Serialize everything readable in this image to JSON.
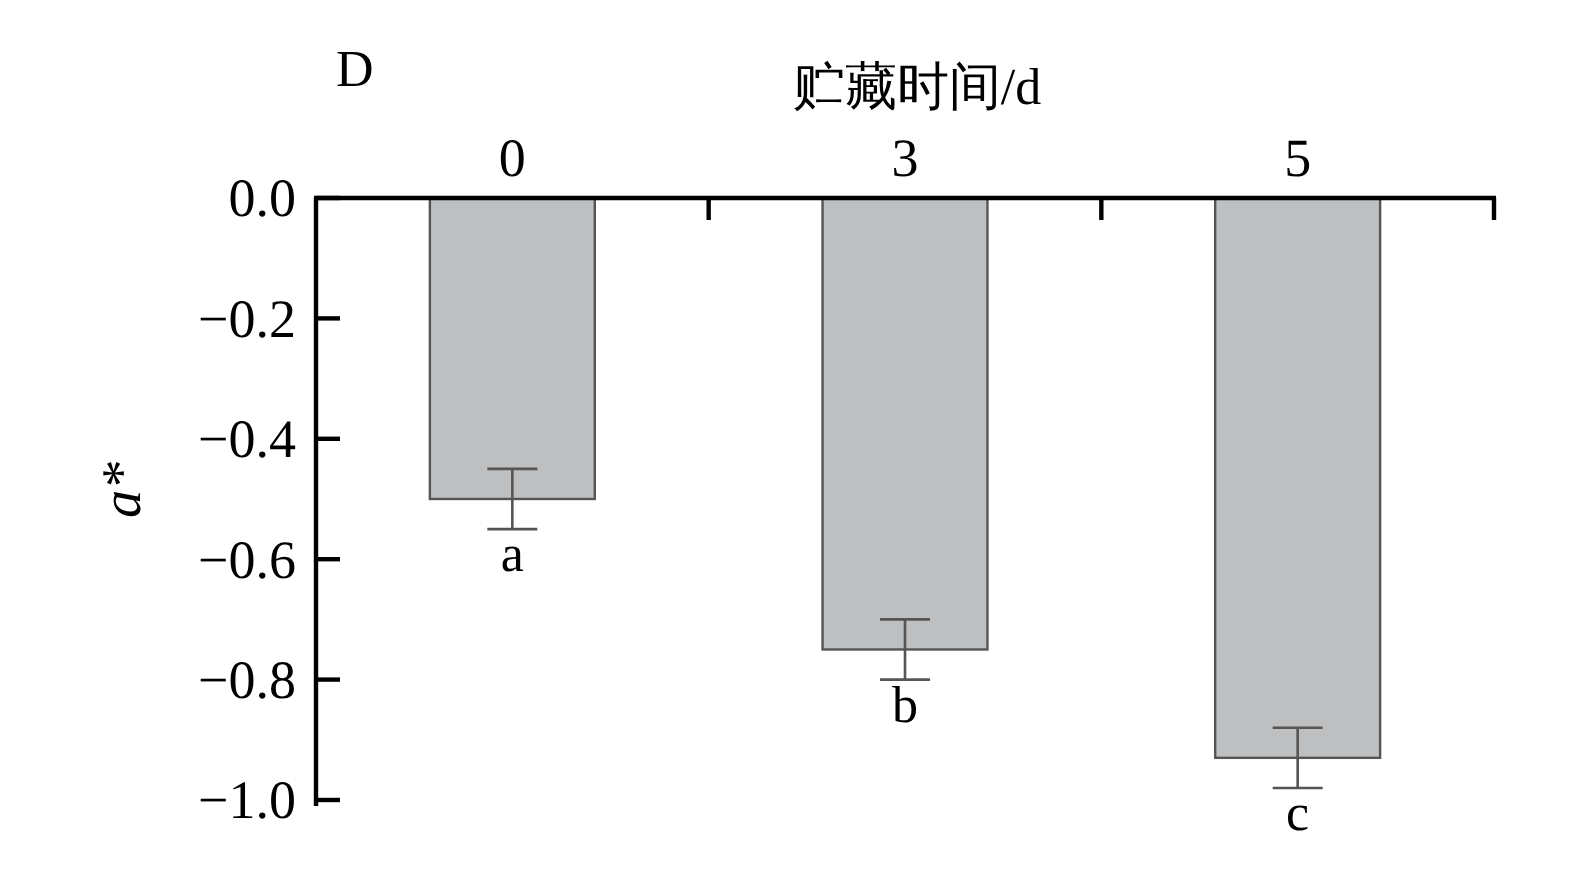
{
  "chart_data": {
    "type": "bar",
    "title": "D",
    "xlabel": "贮藏时间/d",
    "ylabel": "a*",
    "categories": [
      "0",
      "3",
      "5"
    ],
    "values": [
      -0.5,
      -0.75,
      -0.93
    ],
    "errors": [
      0.05,
      0.05,
      0.05
    ],
    "color": "#bebfc1",
    "ylim": [
      -1.01,
      0
    ],
    "yticks": [
      {
        "value": 0,
        "label": "0.0"
      },
      {
        "value": -0.2,
        "label": "−0.2"
      },
      {
        "value": -0.4,
        "label": "−0.4"
      },
      {
        "value": -0.6,
        "label": "−0.6"
      },
      {
        "value": -0.8,
        "label": "−0.8"
      },
      {
        "value": -1.0,
        "label": "−1.0"
      }
    ],
    "annotations": [
      {
        "text": "a",
        "x": "0",
        "y": -0.55
      },
      {
        "text": "b",
        "x": "3",
        "y": -0.8
      },
      {
        "text": "c",
        "x": "5",
        "y": -0.98
      }
    ]
  }
}
